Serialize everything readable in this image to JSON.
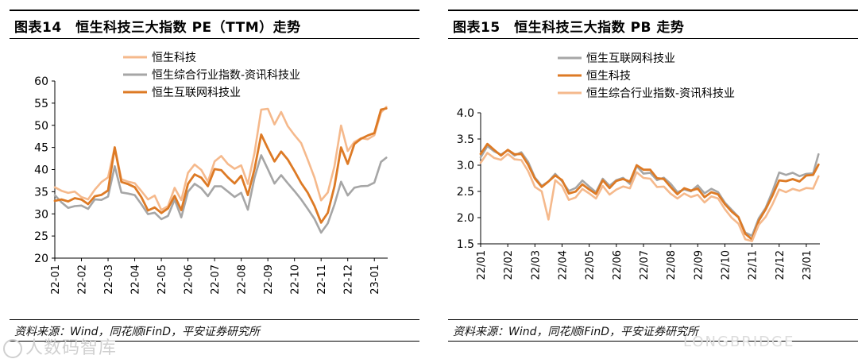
{
  "colors": {
    "dark_orange": "#dd7a25",
    "light_orange": "#f5b98c",
    "gray": "#a6a6a6",
    "axis": "#000000"
  },
  "watermark": {
    "left": "人数码智库",
    "right": "LONGBRIDGE"
  },
  "chart_data": [
    {
      "type": "line",
      "title": "图表14　恒生科技三大指数 PE（TTM）走势",
      "source": "资料来源：Wind，同花顺iFinD，平安证券研究所",
      "ylim": [
        20,
        60
      ],
      "yticks": [
        20,
        25,
        30,
        35,
        40,
        45,
        50,
        55,
        60
      ],
      "xticks": [
        "22-01",
        "22-02",
        "22-03",
        "22-04",
        "22-05",
        "22-06",
        "22-07",
        "22-08",
        "22-09",
        "22-10",
        "22-11",
        "22-12",
        "23-01"
      ],
      "legend_position": "top-center",
      "legend": [
        "恒生科技",
        "恒生综合行业指数-资讯科技业",
        "恒生互联网科技业"
      ],
      "x": [
        0,
        0.25,
        0.5,
        0.75,
        1,
        1.25,
        1.5,
        1.75,
        2,
        2.25,
        2.5,
        2.75,
        3,
        3.25,
        3.5,
        3.75,
        4,
        4.25,
        4.5,
        4.75,
        5,
        5.25,
        5.5,
        5.75,
        6,
        6.25,
        6.5,
        6.75,
        7,
        7.25,
        7.5,
        7.75,
        8,
        8.25,
        8.5,
        8.75,
        9,
        9.25,
        9.5,
        9.75,
        10,
        10.25,
        10.5,
        10.75,
        11,
        11.25,
        11.5,
        11.75,
        12,
        12.25,
        12.45
      ],
      "series": [
        {
          "name": "恒生科技",
          "color_key": "light_orange",
          "width": 2.6,
          "values": [
            36,
            35,
            34.5,
            35,
            34,
            33.5,
            35.5,
            37,
            38,
            45,
            38,
            37.5,
            37,
            35,
            33,
            34,
            31,
            32,
            36,
            33,
            39,
            41,
            40,
            37.5,
            42,
            43,
            41,
            40,
            41,
            37,
            44,
            53.5,
            53.5,
            50,
            53,
            50,
            48,
            46,
            42,
            38,
            33,
            35,
            41,
            50,
            44,
            46,
            47,
            47,
            48,
            53,
            54
          ]
        },
        {
          "name": "恒生综合行业指数-资讯科技业",
          "color_key": "gray",
          "width": 2.6,
          "values": [
            34,
            32.5,
            31.5,
            32,
            32,
            31,
            33,
            33,
            34,
            41,
            35,
            34.5,
            34,
            32,
            30,
            30.5,
            29,
            29.5,
            33,
            29,
            35,
            37,
            36,
            34,
            36,
            36,
            35,
            34,
            35,
            31,
            38,
            43,
            40,
            37,
            39,
            37,
            35,
            33,
            31,
            29,
            26,
            28,
            32,
            37,
            34,
            36,
            36.5,
            36.5,
            37,
            41.5,
            42.5
          ]
        },
        {
          "name": "恒生互联网科技业",
          "color_key": "dark_orange",
          "width": 2.8,
          "values": [
            33,
            33.5,
            33,
            33.5,
            33,
            32,
            34,
            34.5,
            35.5,
            45,
            37,
            36.5,
            36,
            34,
            31,
            31.5,
            30,
            31,
            34,
            31,
            37,
            39,
            38,
            36,
            40,
            40,
            38.5,
            37,
            38.5,
            34,
            40,
            48,
            45,
            42,
            44,
            42,
            39.5,
            37,
            35,
            32,
            28,
            30,
            36,
            45,
            41.5,
            46,
            47,
            47.5,
            48,
            53.5,
            54
          ]
        }
      ]
    },
    {
      "type": "line",
      "title": "图表15　恒生科技三大指数 PB 走势",
      "source": "资料来源：Wind，同花顺iFinD，平安证券研究所",
      "ylim": [
        1.5,
        4.0
      ],
      "yticks": [
        1.5,
        2.0,
        2.5,
        3.0,
        3.5,
        4.0
      ],
      "yticklabels": [
        "1.5",
        "2.0",
        "2.5",
        "3.0",
        "3.5",
        "4.0"
      ],
      "xticks": [
        "22/01",
        "22/02",
        "22/03",
        "22/04",
        "22/05",
        "22/06",
        "22/07",
        "22/08",
        "22/09",
        "22/10",
        "22/11",
        "22/12",
        "23/01"
      ],
      "legend_position": "top-center",
      "legend": [
        "恒生互联网科技业",
        "恒生科技",
        "恒生综合行业指数-资讯科技业"
      ],
      "x": [
        0,
        0.25,
        0.5,
        0.75,
        1,
        1.25,
        1.5,
        1.75,
        2,
        2.25,
        2.5,
        2.75,
        3,
        3.25,
        3.5,
        3.75,
        4,
        4.25,
        4.5,
        4.75,
        5,
        5.25,
        5.5,
        5.75,
        6,
        6.25,
        6.5,
        6.75,
        7,
        7.25,
        7.5,
        7.75,
        8,
        8.25,
        8.5,
        8.75,
        9,
        9.25,
        9.5,
        9.75,
        10,
        10.25,
        10.5,
        10.75,
        11,
        11.25,
        11.5,
        11.75,
        12,
        12.25,
        12.45
      ],
      "series": [
        {
          "name": "恒生互联网科技业",
          "color_key": "gray",
          "width": 2.6,
          "values": [
            3.15,
            3.35,
            3.25,
            3.2,
            3.3,
            3.2,
            3.25,
            3.05,
            2.75,
            2.6,
            2.7,
            2.85,
            2.7,
            2.5,
            2.55,
            2.7,
            2.6,
            2.5,
            2.75,
            2.6,
            2.7,
            2.75,
            2.65,
            3.0,
            2.85,
            2.85,
            2.7,
            2.75,
            2.65,
            2.5,
            2.55,
            2.5,
            2.6,
            2.45,
            2.55,
            2.5,
            2.3,
            2.15,
            2.0,
            1.7,
            1.65,
            2.0,
            2.2,
            2.5,
            2.85,
            2.8,
            2.85,
            2.8,
            2.85,
            2.85,
            3.2
          ]
        },
        {
          "name": "恒生科技",
          "color_key": "dark_orange",
          "width": 2.8,
          "values": [
            3.2,
            3.4,
            3.3,
            3.2,
            3.3,
            3.2,
            3.2,
            3.0,
            2.75,
            2.6,
            2.7,
            2.8,
            2.7,
            2.45,
            2.5,
            2.65,
            2.55,
            2.45,
            2.7,
            2.55,
            2.7,
            2.75,
            2.7,
            3.0,
            2.9,
            2.9,
            2.75,
            2.75,
            2.6,
            2.45,
            2.55,
            2.5,
            2.55,
            2.4,
            2.5,
            2.45,
            2.25,
            2.1,
            2.0,
            1.7,
            1.6,
            1.95,
            2.15,
            2.4,
            2.7,
            2.7,
            2.75,
            2.7,
            2.8,
            2.8,
            3.0
          ]
        },
        {
          "name": "恒生综合行业指数-资讯科技业",
          "color_key": "light_orange",
          "width": 2.6,
          "values": [
            3.05,
            3.25,
            3.15,
            3.1,
            3.2,
            3.1,
            3.1,
            2.9,
            2.6,
            2.5,
            1.95,
            2.7,
            2.6,
            2.35,
            2.4,
            2.55,
            2.45,
            2.35,
            2.6,
            2.45,
            2.55,
            2.6,
            2.55,
            2.85,
            2.75,
            2.75,
            2.6,
            2.6,
            2.45,
            2.35,
            2.45,
            2.4,
            2.45,
            2.3,
            2.4,
            2.35,
            2.15,
            2.0,
            1.9,
            1.6,
            1.55,
            1.85,
            2.0,
            2.25,
            2.55,
            2.5,
            2.55,
            2.5,
            2.55,
            2.55,
            2.8
          ]
        }
      ]
    }
  ]
}
